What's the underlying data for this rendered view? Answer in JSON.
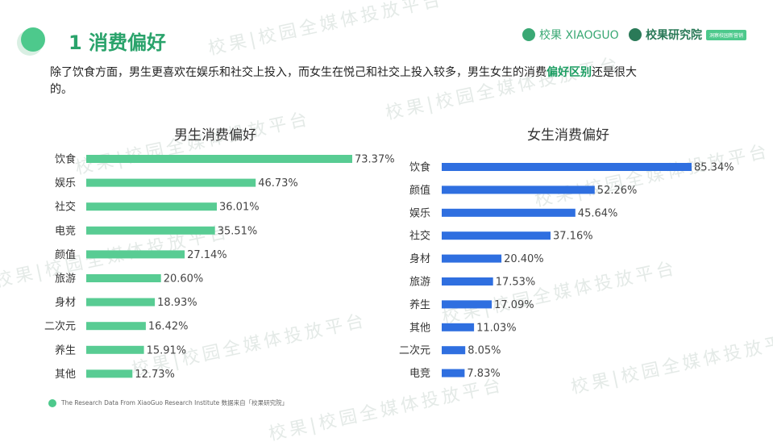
{
  "header": {
    "title": "1 消费偏好",
    "brand1": "校果 XIAOGUO",
    "brand2": "校果研究院",
    "brand2_badge": "洞察校园新营销"
  },
  "watermark_text": "校果|校园全媒体投放平台",
  "intro": {
    "text_before": "除了饮食方面，男生更喜欢在娱乐和社交上投入，而女生在悦己和社交上投入较多，男生女生的消费",
    "highlight": "偏好区别",
    "text_after": "还是很大的。"
  },
  "footer": {
    "text": "The Research Data  From XiaoGuo Research Institute 数据来自「校果研究院」"
  },
  "colors": {
    "male_bar": "#58cc93",
    "female_bar": "#2f6fe0",
    "accent": "#1d9e63"
  },
  "chart_data": [
    {
      "type": "bar",
      "orientation": "horizontal",
      "title": "男生消费偏好",
      "categories": [
        "饮食",
        "娱乐",
        "社交",
        "电竞",
        "颜值",
        "旅游",
        "身材",
        "二次元",
        "养生",
        "其他"
      ],
      "values": [
        73.37,
        46.73,
        36.01,
        35.51,
        27.14,
        20.6,
        18.93,
        16.42,
        15.91,
        12.73
      ],
      "value_labels": [
        "73.37%",
        "46.73%",
        "36.01%",
        "35.51%",
        "27.14%",
        "20.60%",
        "18.93%",
        "16.42%",
        "15.91%",
        "12.73%"
      ],
      "unit": "%",
      "grid": false
    },
    {
      "type": "bar",
      "orientation": "horizontal",
      "title": "女生消费偏好",
      "categories": [
        "饮食",
        "颜值",
        "娱乐",
        "社交",
        "身材",
        "旅游",
        "养生",
        "其他",
        "二次元",
        "电竞"
      ],
      "values": [
        85.34,
        52.26,
        45.64,
        37.16,
        20.4,
        17.53,
        17.09,
        11.03,
        8.05,
        7.83
      ],
      "value_labels": [
        "85.34%",
        "52.26%",
        "45.64%",
        "37.16%",
        "20.40%",
        "17.53%",
        "17.09%",
        "11.03%",
        "8.05%",
        "7.83%"
      ],
      "unit": "%",
      "grid": false
    }
  ]
}
